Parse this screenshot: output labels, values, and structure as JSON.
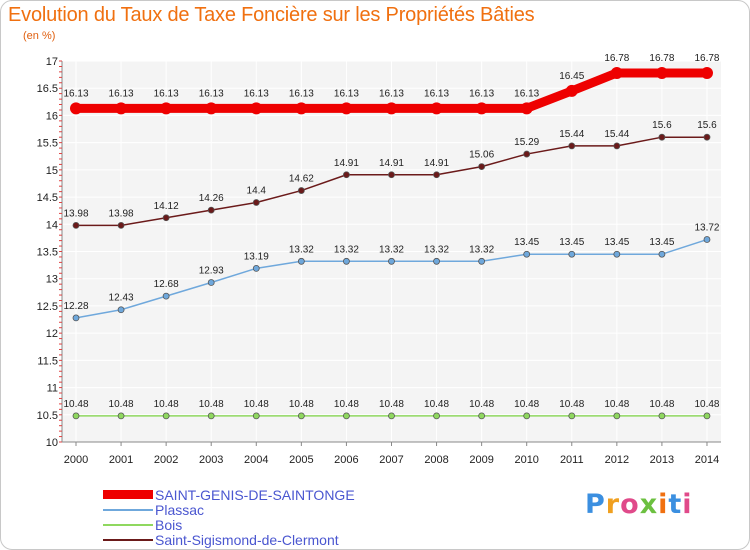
{
  "title": "Evolution du Taux de Taxe Foncière sur les Propriétés Bâties",
  "subtitle": "(en %)",
  "logo": {
    "text": "Proxiti",
    "colors": [
      "#3b8fe0",
      "#f0a020",
      "#e04a8a",
      "#6cc040",
      "#f07010",
      "#3b8fe0",
      "#e04a8a"
    ]
  },
  "chart_data": {
    "type": "line",
    "title": "Evolution du Taux de Taxe Foncière sur les Propriétés Bâties",
    "ylabel": "(en %)",
    "xlabel": "",
    "ylim": [
      10,
      17
    ],
    "yticks": [
      "10",
      "10.5",
      "11",
      "11.5",
      "12",
      "12.5",
      "13",
      "13.5",
      "14",
      "14.5",
      "15",
      "15.5",
      "16",
      "16.5",
      "17"
    ],
    "categories": [
      "2000",
      "2001",
      "2002",
      "2003",
      "2004",
      "2005",
      "2006",
      "2007",
      "2008",
      "2009",
      "2010",
      "2011",
      "2012",
      "2013",
      "2014"
    ],
    "series": [
      {
        "name": "SAINT-GENIS-DE-SAINTONGE",
        "color": "#ee0000",
        "values": [
          16.13,
          16.13,
          16.13,
          16.13,
          16.13,
          16.13,
          16.13,
          16.13,
          16.13,
          16.13,
          16.13,
          16.45,
          16.78,
          16.78,
          16.78
        ]
      },
      {
        "name": "Plassac",
        "color": "#6fa8dc",
        "values": [
          12.28,
          12.43,
          12.68,
          12.93,
          13.19,
          13.32,
          13.32,
          13.32,
          13.32,
          13.32,
          13.45,
          13.45,
          13.45,
          13.45,
          13.72
        ]
      },
      {
        "name": "Bois",
        "color": "#8fd85f",
        "values": [
          10.48,
          10.48,
          10.48,
          10.48,
          10.48,
          10.48,
          10.48,
          10.48,
          10.48,
          10.48,
          10.48,
          10.48,
          10.48,
          10.48,
          10.48
        ]
      },
      {
        "name": "Saint-Sigismond-de-Clermont",
        "color": "#6b1a1a",
        "values": [
          13.98,
          13.98,
          14.12,
          14.26,
          14.4,
          14.62,
          14.91,
          14.91,
          14.91,
          15.06,
          15.29,
          15.44,
          15.44,
          15.6,
          15.6
        ]
      }
    ]
  }
}
